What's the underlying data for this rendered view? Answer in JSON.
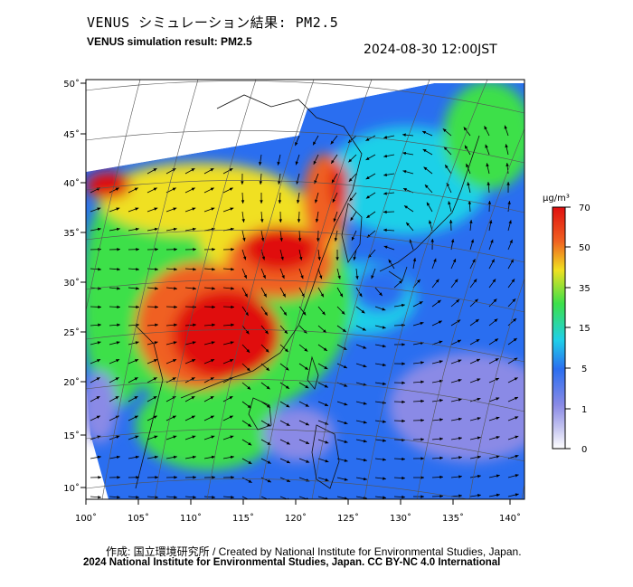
{
  "title_jp": "VENUS シミュレーション結果: PM2.5",
  "title_en": "VENUS simulation result: PM2.5",
  "datetime": "2024-08-30 12:00JST",
  "credit": "作成: 国立環境研究所 / Created by National Institute for Environmental Studies, Japan.",
  "copyright": "2024 National Institute for Environmental Studies, Japan. CC BY-NC 4.0 International",
  "colorbar": {
    "unit": "µg/m³",
    "ticks": [
      "0",
      "1",
      "5",
      "15",
      "35",
      "50",
      "70"
    ],
    "colors": [
      "#ffffff",
      "#8a8ae6",
      "#2a6ef0",
      "#1fd0e8",
      "#3ce04a",
      "#f0e020",
      "#f06020",
      "#e01010"
    ]
  },
  "map": {
    "lon_labels": [
      "100˚",
      "105˚",
      "110˚",
      "115˚",
      "120˚",
      "125˚",
      "130˚",
      "135˚",
      "140˚"
    ],
    "lat_labels": [
      "50˚",
      "45˚",
      "40˚",
      "35˚",
      "30˚",
      "25˚",
      "20˚",
      "15˚",
      "10˚"
    ],
    "lon_range": [
      100,
      142
    ],
    "lat_range": [
      9,
      51
    ]
  }
}
